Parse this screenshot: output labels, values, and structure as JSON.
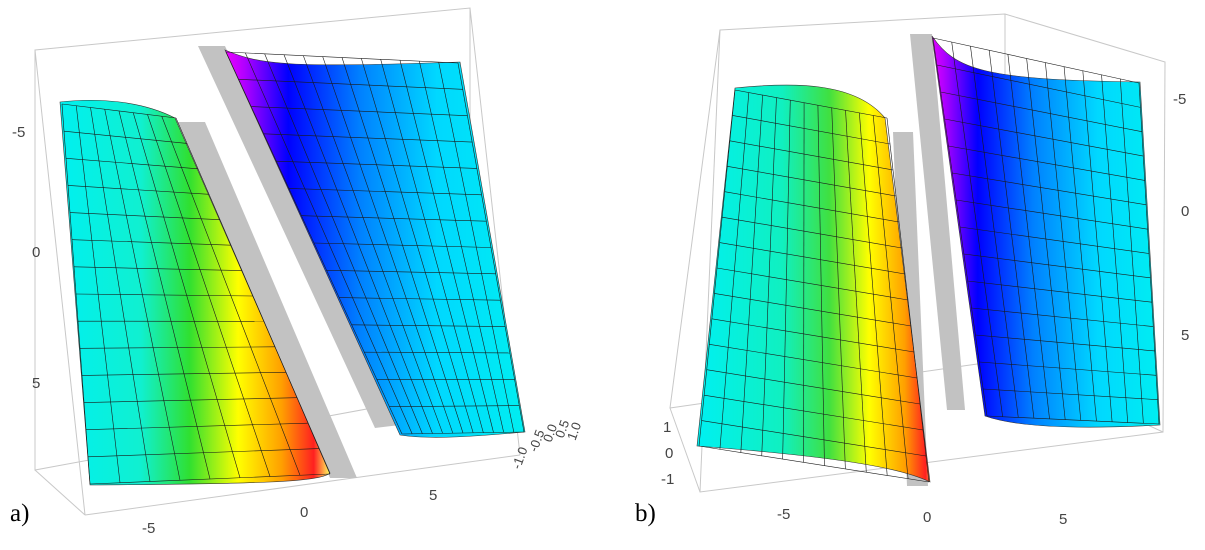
{
  "chart_data": [
    {
      "type": "surface3d",
      "panel_label": "a)",
      "xticks": [
        "-5",
        "0",
        "5"
      ],
      "yticks": [
        "-5",
        "0",
        "5"
      ],
      "zticks": [
        "1.0",
        "0.5",
        "0.0",
        "-0.5",
        "-1.0"
      ],
      "xlim": [
        -8,
        8
      ],
      "ylim": [
        -8,
        8
      ],
      "zlim": [
        -1,
        1
      ],
      "mesh": true,
      "colors": {
        "flat": "#00f0f0",
        "left_peak": "#ff2020",
        "left_mid": "#ffff00",
        "left_low": "#30e030",
        "right_peak": "#ff00ff",
        "right_mid": "#0000ff",
        "right_low": "#00b0ff",
        "gap_wall": "#c0c0c0"
      }
    },
    {
      "type": "surface3d",
      "panel_label": "b)",
      "xticks": [
        "-5",
        "0",
        "5"
      ],
      "yticks": [
        "-5",
        "0",
        "5"
      ],
      "zticks": [
        "1",
        "0",
        "-1"
      ],
      "xlim": [
        -8,
        8
      ],
      "ylim": [
        -8,
        8
      ],
      "zlim": [
        -1,
        1
      ],
      "mesh": true,
      "colors": {
        "flat": "#00f0f0",
        "left_peak": "#ff2020",
        "left_mid": "#ffff00",
        "left_low": "#30e030",
        "right_peak": "#ff00ff",
        "right_mid": "#0000ff",
        "right_low": "#00b0ff",
        "gap_wall": "#c0c0c0"
      }
    }
  ]
}
